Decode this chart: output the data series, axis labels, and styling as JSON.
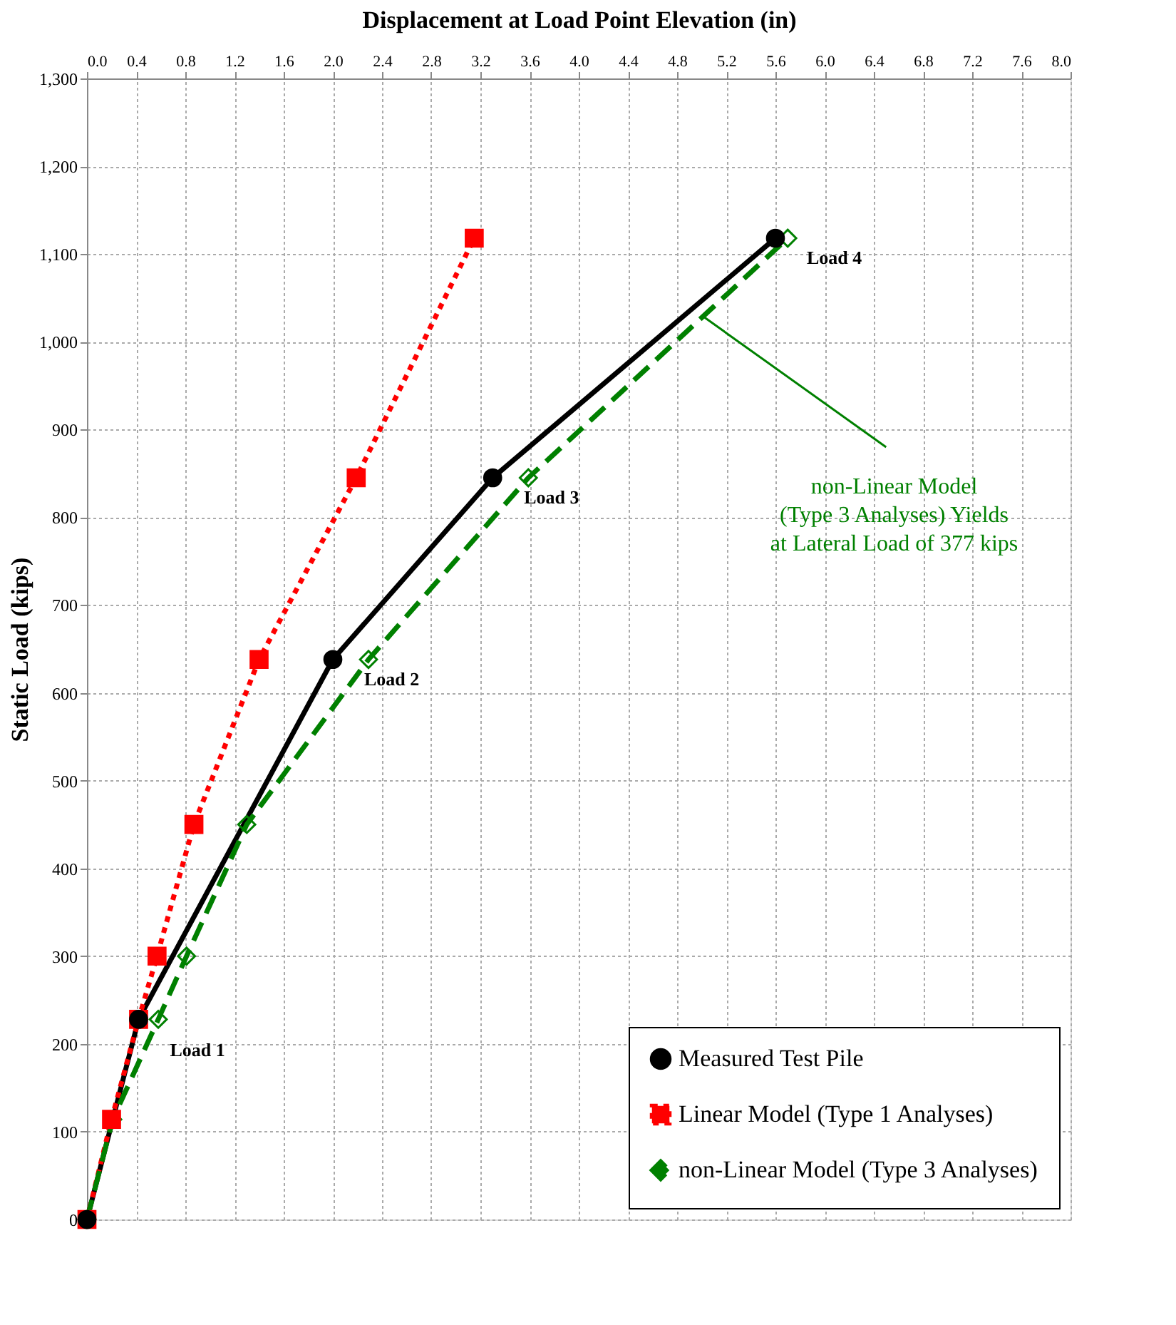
{
  "chart_data": {
    "type": "line",
    "xlabel": "Displacement at Load Point Elevation (in)",
    "ylabel": "Static Load (kips)",
    "xlim": [
      0,
      8
    ],
    "xticks": [
      {
        "value": 0,
        "label": "0.0"
      },
      0.4,
      0.8,
      1.2,
      1.6,
      {
        "value": 2,
        "label": "2.0"
      },
      2.4,
      2.8,
      3.2,
      3.6,
      {
        "value": 4,
        "label": "4.0"
      },
      4.4,
      4.8,
      5.2,
      5.6,
      {
        "value": 6,
        "label": "6.0"
      },
      6.4,
      6.8,
      7.2,
      7.6,
      {
        "value": 8,
        "label": "8.0"
      }
    ],
    "ylim": [
      0,
      1300
    ],
    "yticks": [
      0,
      100,
      200,
      300,
      400,
      500,
      600,
      700,
      800,
      900,
      {
        "value": 1000,
        "label": "1,000"
      },
      {
        "value": 1100,
        "label": "1,100"
      },
      {
        "value": 1200,
        "label": "1,200"
      },
      {
        "value": 1300,
        "label": "1,300"
      }
    ],
    "grid": true,
    "legend": "bottom right",
    "series": [
      {
        "name": "Measured Test Pile",
        "color": "#000000",
        "marker": "circle",
        "line_style": "solid",
        "x": [
          0,
          0.42,
          2.0,
          3.3,
          5.6
        ],
        "values": [
          0,
          228,
          638,
          845,
          1118
        ]
      },
      {
        "name": "Linear Model (Type 1 Analyses)",
        "color": "#ff0000",
        "marker": "square",
        "line_style": "dotted",
        "x": [
          0,
          0.2,
          0.42,
          0.57,
          0.87,
          1.4,
          2.19,
          3.15
        ],
        "values": [
          0,
          114,
          228,
          300,
          450,
          638,
          845,
          1118
        ]
      },
      {
        "name": "non-Linear Model (Type 3 Analyses)",
        "color": "#008000",
        "marker": "diamond",
        "line_style": "dashed",
        "x": [
          0,
          0.21,
          0.58,
          0.81,
          1.3,
          2.29,
          3.59,
          5.7
        ],
        "values": [
          0,
          114,
          228,
          300,
          450,
          638,
          845,
          1118
        ]
      }
    ],
    "annotations": [
      {
        "text": "Load 1",
        "x": 0.42,
        "y": 228
      },
      {
        "text": "Load 2",
        "x": 2.0,
        "y": 638
      },
      {
        "text": "Load 3",
        "x": 3.3,
        "y": 845
      },
      {
        "text": "Load 4",
        "x": 5.6,
        "y": 1118
      },
      {
        "text": "non-Linear Model\n(Type 3 Analyses) Yields\nat Lateral Load of 377 kips",
        "x": 5.0,
        "y": 1030
      }
    ]
  }
}
